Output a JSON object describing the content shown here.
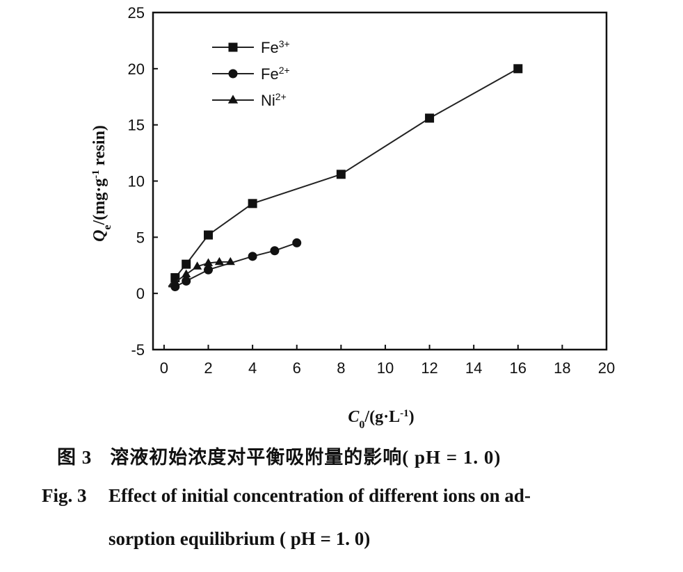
{
  "chart_data": {
    "type": "line",
    "xlabel_main": "C",
    "xlabel_sub": "0",
    "xlabel_rest": "/(g·L",
    "xlabel_sup": "-1",
    "xlabel_close": ")",
    "ylabel_main": "Q",
    "ylabel_sub": "e",
    "ylabel_rest": "/(mg·g",
    "ylabel_sup": "-1",
    "ylabel_close": " resin)",
    "xlim": [
      -0.5,
      20
    ],
    "ylim": [
      -5,
      25
    ],
    "xticks": [
      0,
      2,
      4,
      6,
      8,
      10,
      12,
      14,
      16,
      18,
      20
    ],
    "yticks": [
      -5,
      0,
      5,
      10,
      15,
      20,
      25
    ],
    "legend_position": "top-left",
    "series": [
      {
        "name": "Fe",
        "sup": "3+",
        "marker": "square",
        "x": [
          0.5,
          1,
          2,
          4,
          8,
          12,
          16
        ],
        "y": [
          1.4,
          2.6,
          5.2,
          8.0,
          10.6,
          15.6,
          20.0
        ]
      },
      {
        "name": "Fe",
        "sup": "2+",
        "marker": "circle",
        "x": [
          0.5,
          1,
          2,
          4,
          5,
          6
        ],
        "y": [
          0.6,
          1.1,
          2.1,
          3.3,
          3.8,
          4.5
        ]
      },
      {
        "name": "Ni",
        "sup": "2+",
        "marker": "triangle",
        "x": [
          0.5,
          1,
          1.5,
          2,
          2.5,
          3
        ],
        "y": [
          1.0,
          1.7,
          2.4,
          2.7,
          2.8,
          2.8
        ]
      }
    ],
    "line_start": [
      0.2,
      0.6
    ]
  },
  "caption": {
    "cn_label": "图 3",
    "cn_text": "溶液初始浓度对平衡吸附量的影响( pH = 1. 0)",
    "en_label": "Fig. 3",
    "en_text_line1": "Effect of initial concentration of different ions on ad-",
    "en_text_line2": "sorption equilibrium ( pH = 1. 0)"
  }
}
